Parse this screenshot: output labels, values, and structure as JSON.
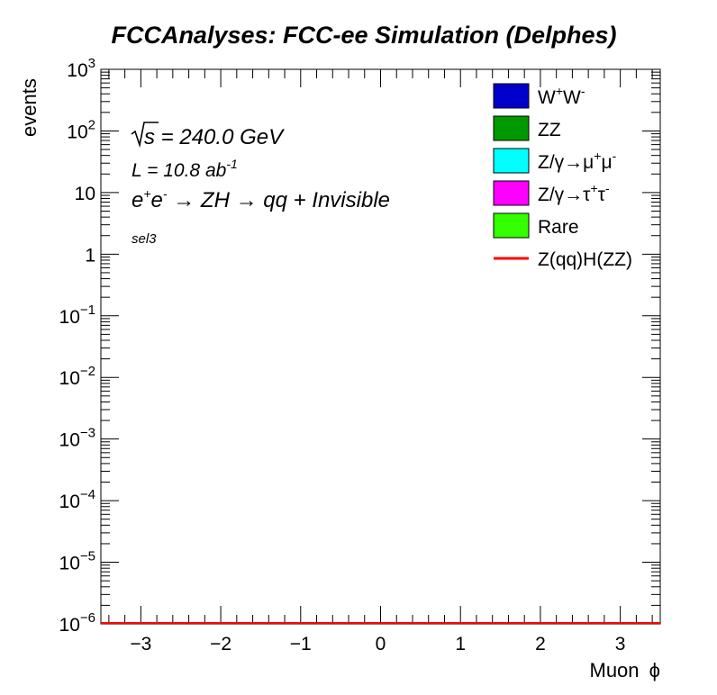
{
  "chart_data": {
    "type": "bar",
    "title": "FCCAnalyses: FCC-ee Simulation (Delphes)",
    "xlabel": "Muon",
    "xlabel_symbol": "ϕ",
    "ylabel": "events",
    "xlim": [
      -3.5,
      3.5
    ],
    "ylim": [
      1e-06,
      1000
    ],
    "y_scale": "log",
    "grid": false,
    "legend_position": "top-right",
    "x_ticks": [
      {
        "value": -3,
        "label": "−3"
      },
      {
        "value": -2,
        "label": "−2"
      },
      {
        "value": -1,
        "label": "−1"
      },
      {
        "value": 0,
        "label": "0"
      },
      {
        "value": 1,
        "label": "1"
      },
      {
        "value": 2,
        "label": "2"
      },
      {
        "value": 3,
        "label": "3"
      }
    ],
    "y_ticks": [
      {
        "value": 1000,
        "base": "10",
        "exp": "3"
      },
      {
        "value": 100,
        "base": "10",
        "exp": "2"
      },
      {
        "value": 10,
        "base": "10",
        "exp": ""
      },
      {
        "value": 1,
        "base": "1",
        "exp": ""
      },
      {
        "value": 0.1,
        "base": "10",
        "exp": "−1"
      },
      {
        "value": 0.01,
        "base": "10",
        "exp": "−2"
      },
      {
        "value": 0.001,
        "base": "10",
        "exp": "−3"
      },
      {
        "value": 0.0001,
        "base": "10",
        "exp": "−4"
      },
      {
        "value": 1e-05,
        "base": "10",
        "exp": "−5"
      },
      {
        "value": 1e-06,
        "base": "10",
        "exp": "−6"
      }
    ],
    "annotations": {
      "sqrt_s": {
        "root": "s",
        "rest": " = 240.0 GeV"
      },
      "lumi": {
        "text": "L = 10.8 ab",
        "sup": "-1"
      },
      "process": {
        "e1": "e",
        "sup1": "+",
        "e2": "e",
        "sup2": "-",
        "rest": " → ZH → qq + Invisible"
      },
      "selection": "sel3"
    },
    "series": [
      {
        "name": "W⁺W⁻",
        "parts": [
          [
            "W",
            ""
          ],
          [
            "+",
            "sup"
          ],
          [
            "W",
            ""
          ],
          [
            "-",
            "sup"
          ]
        ],
        "color": "#0000cc",
        "style": "fill",
        "values": []
      },
      {
        "name": "ZZ",
        "parts": [
          [
            "ZZ",
            ""
          ]
        ],
        "color": "#009900",
        "style": "fill",
        "values": []
      },
      {
        "name": "Z/γ→μ⁺μ⁻",
        "parts": [
          [
            "Z/γ→μ",
            ""
          ],
          [
            "+",
            "sup"
          ],
          [
            "μ",
            ""
          ],
          [
            "-",
            "sup"
          ]
        ],
        "color": "#00ffff",
        "style": "fill",
        "values": []
      },
      {
        "name": "Z/γ→τ⁺τ⁻",
        "parts": [
          [
            "Z/γ→τ",
            ""
          ],
          [
            "+",
            "sup"
          ],
          [
            "τ",
            ""
          ],
          [
            "-",
            "sup"
          ]
        ],
        "color": "#ff00ff",
        "style": "fill",
        "values": []
      },
      {
        "name": "Rare",
        "parts": [
          [
            "Rare",
            ""
          ]
        ],
        "color": "#33ff00",
        "style": "fill",
        "values": []
      },
      {
        "name": "Z(qq)H(ZZ)",
        "parts": [
          [
            "Z(qq)H(ZZ)",
            ""
          ]
        ],
        "color": "#ff0000",
        "style": "line",
        "values": []
      }
    ]
  }
}
